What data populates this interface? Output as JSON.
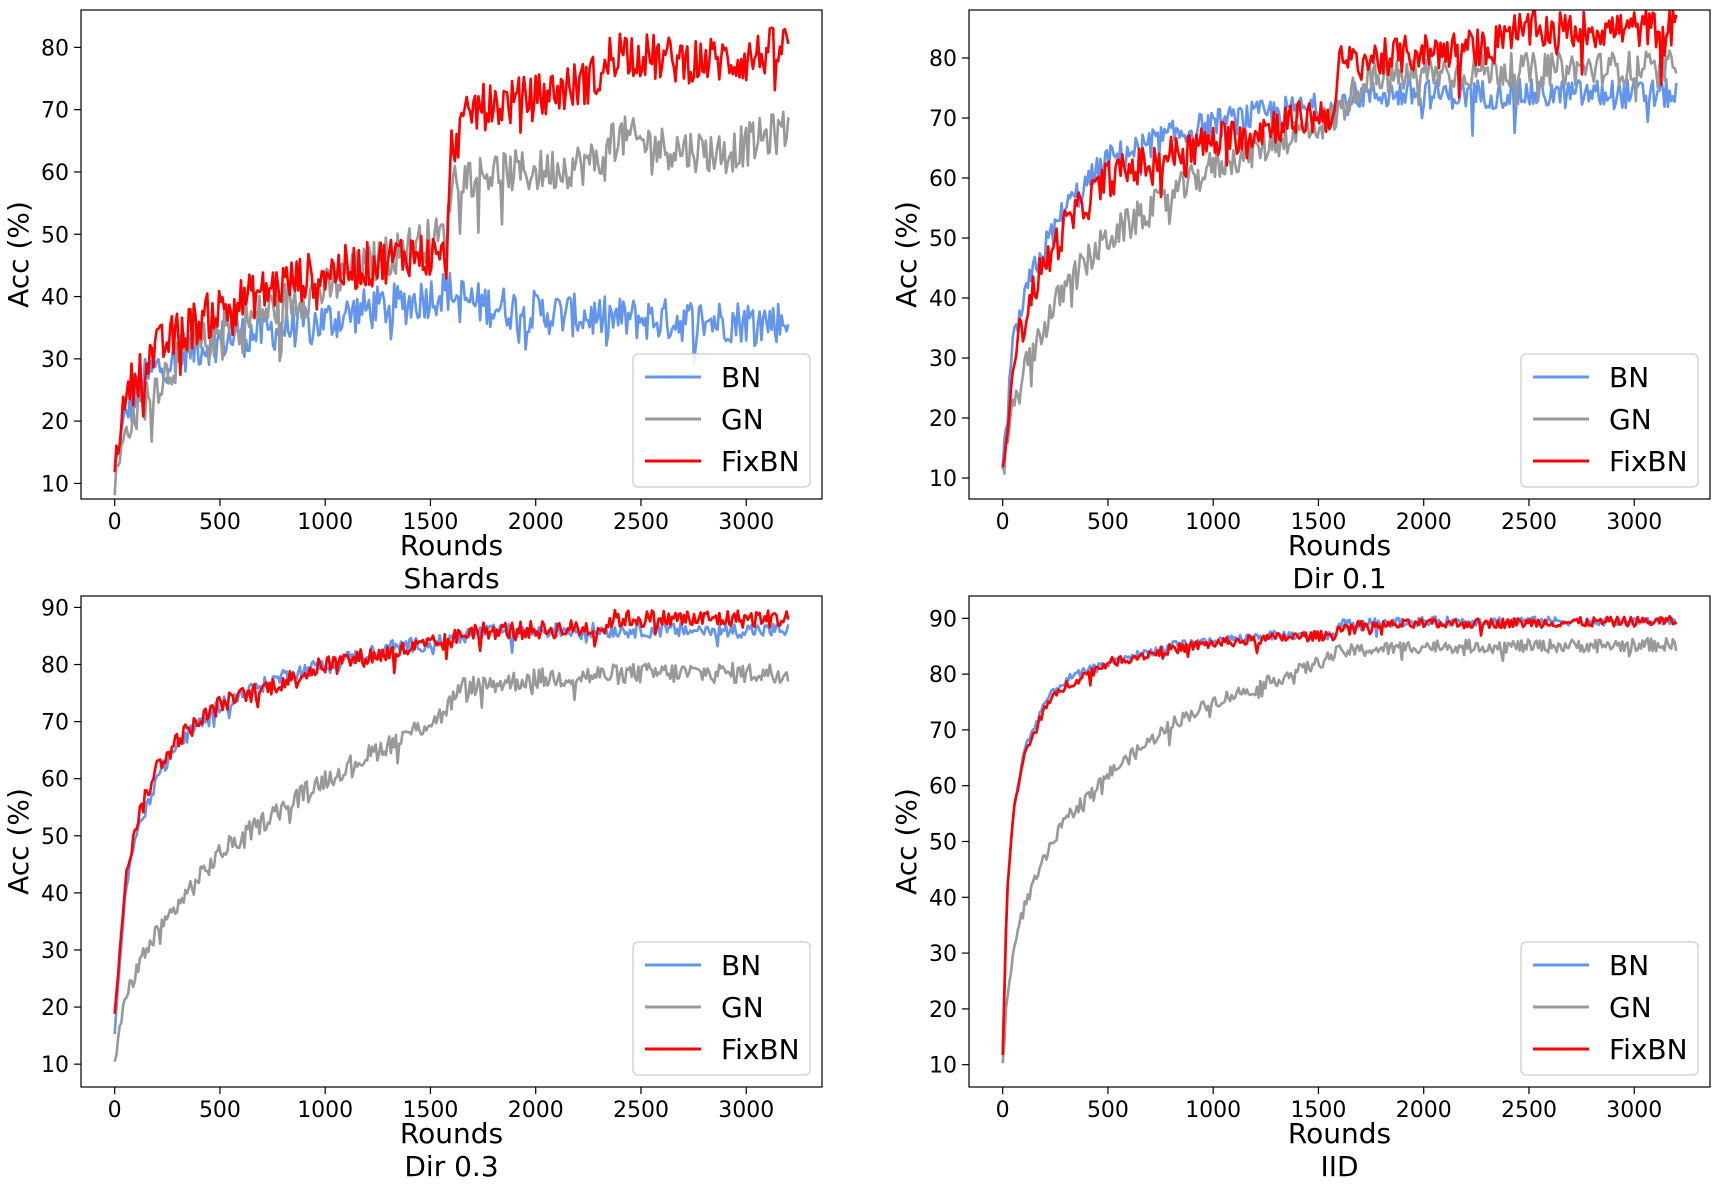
{
  "figure": {
    "ylabel": "Acc (%)",
    "xlabel": "Rounds"
  },
  "legend_entries": [
    {
      "name": "BN",
      "color": "#6495ED"
    },
    {
      "name": "GN",
      "color": "#999999"
    },
    {
      "name": "FixBN",
      "color": "#FF0000"
    }
  ],
  "chart_data": [
    {
      "type": "line",
      "title": "Shards",
      "xlabel": "Rounds",
      "ylabel": "Acc (%)",
      "xlim": [
        -160,
        3360
      ],
      "ylim": [
        7.5,
        86
      ],
      "xticks": [
        0,
        500,
        1000,
        1500,
        2000,
        2500,
        3000
      ],
      "yticks": [
        10,
        20,
        30,
        40,
        50,
        60,
        70,
        80
      ],
      "legend_position": "lower-right",
      "series": [
        {
          "name": "BN",
          "color": "#6495ED",
          "noise": 3.5,
          "points": [
            [
              0,
              12
            ],
            [
              50,
              21
            ],
            [
              150,
              27
            ],
            [
              300,
              31
            ],
            [
              500,
              33
            ],
            [
              800,
              35
            ],
            [
              1000,
              36
            ],
            [
              1200,
              38
            ],
            [
              1400,
              39
            ],
            [
              1580,
              41
            ],
            [
              1700,
              39
            ],
            [
              2000,
              37.5
            ],
            [
              2350,
              36.5
            ],
            [
              2700,
              36.2
            ],
            [
              3200,
              36
            ]
          ]
        },
        {
          "name": "GN",
          "color": "#999999",
          "noise": 3.5,
          "points": [
            [
              0,
              10
            ],
            [
              50,
              18
            ],
            [
              150,
              24
            ],
            [
              300,
              30
            ],
            [
              500,
              34
            ],
            [
              800,
              39
            ],
            [
              1000,
              41
            ],
            [
              1200,
              45
            ],
            [
              1400,
              48
            ],
            [
              1580,
              50
            ],
            [
              1600,
              59
            ],
            [
              1800,
              60
            ],
            [
              2000,
              60
            ],
            [
              2340,
              62
            ],
            [
              2360,
              66
            ],
            [
              2600,
              64
            ],
            [
              2900,
              63
            ],
            [
              3200,
              67
            ]
          ]
        },
        {
          "name": "FixBN",
          "color": "#FF0000",
          "noise": 3.8,
          "points": [
            [
              0,
              13
            ],
            [
              50,
              24
            ],
            [
              150,
              30
            ],
            [
              300,
              34
            ],
            [
              500,
              38
            ],
            [
              800,
              42
            ],
            [
              1000,
              44
            ],
            [
              1200,
              45
            ],
            [
              1400,
              47
            ],
            [
              1580,
              46
            ],
            [
              1600,
              64
            ],
            [
              1700,
              70
            ],
            [
              2000,
              72
            ],
            [
              2200,
              74
            ],
            [
              2340,
              76
            ],
            [
              2360,
              80
            ],
            [
              2600,
              78
            ],
            [
              3000,
              78
            ],
            [
              3200,
              80.5
            ]
          ]
        }
      ]
    },
    {
      "type": "line",
      "title": "Dir 0.1",
      "xlabel": "Rounds",
      "ylabel": "Acc (%)",
      "xlim": [
        -160,
        3360
      ],
      "ylim": [
        6.5,
        88
      ],
      "xticks": [
        0,
        500,
        1000,
        1500,
        2000,
        2500,
        3000
      ],
      "yticks": [
        10,
        20,
        30,
        40,
        50,
        60,
        70,
        80
      ],
      "legend_position": "lower-right",
      "series": [
        {
          "name": "BN",
          "color": "#6495ED",
          "noise": 2.5,
          "points": [
            [
              0,
              12
            ],
            [
              50,
              33
            ],
            [
              150,
              45
            ],
            [
              300,
              55
            ],
            [
              500,
              63
            ],
            [
              800,
              67
            ],
            [
              1000,
              69
            ],
            [
              1300,
              71
            ],
            [
              1580,
              72
            ],
            [
              1700,
              74
            ],
            [
              2000,
              74
            ],
            [
              2400,
              74
            ],
            [
              3200,
              74
            ]
          ]
        },
        {
          "name": "GN",
          "color": "#999999",
          "noise": 2.8,
          "points": [
            [
              0,
              12
            ],
            [
              50,
              22
            ],
            [
              150,
              32
            ],
            [
              300,
              42
            ],
            [
              500,
              50
            ],
            [
              800,
              57
            ],
            [
              1000,
              62
            ],
            [
              1300,
              66
            ],
            [
              1580,
              70
            ],
            [
              1700,
              76
            ],
            [
              2000,
              77.5
            ],
            [
              2400,
              78
            ],
            [
              3200,
              78.5
            ]
          ]
        },
        {
          "name": "FixBN",
          "color": "#FF0000",
          "noise": 3.2,
          "points": [
            [
              0,
              10
            ],
            [
              50,
              30
            ],
            [
              150,
              42
            ],
            [
              300,
              52
            ],
            [
              500,
              60
            ],
            [
              800,
              64
            ],
            [
              1000,
              66
            ],
            [
              1300,
              69
            ],
            [
              1580,
              71
            ],
            [
              1600,
              79
            ],
            [
              2000,
              81
            ],
            [
              2340,
              82
            ],
            [
              2360,
              84.5
            ],
            [
              3200,
              85
            ]
          ]
        }
      ]
    },
    {
      "type": "line",
      "title": "Dir 0.3",
      "xlabel": "Rounds",
      "ylabel": "Acc (%)",
      "xlim": [
        -160,
        3360
      ],
      "ylim": [
        6,
        92
      ],
      "xticks": [
        0,
        500,
        1000,
        1500,
        2000,
        2500,
        3000
      ],
      "yticks": [
        10,
        20,
        30,
        40,
        50,
        60,
        70,
        80,
        90
      ],
      "legend_position": "lower-right",
      "series": [
        {
          "name": "BN",
          "color": "#6495ED",
          "noise": 1.3,
          "points": [
            [
              0,
              16
            ],
            [
              50,
              40
            ],
            [
              100,
              50
            ],
            [
              200,
              60
            ],
            [
              300,
              66
            ],
            [
              500,
              73
            ],
            [
              800,
              78
            ],
            [
              1000,
              80
            ],
            [
              1300,
              83
            ],
            [
              1580,
              84
            ],
            [
              1700,
              85.5
            ],
            [
              2000,
              86
            ],
            [
              2500,
              86
            ],
            [
              3200,
              86
            ]
          ]
        },
        {
          "name": "GN",
          "color": "#999999",
          "noise": 1.8,
          "points": [
            [
              0,
              10
            ],
            [
              50,
              22
            ],
            [
              150,
              30
            ],
            [
              300,
              38
            ],
            [
              500,
              47
            ],
            [
              800,
              55
            ],
            [
              1000,
              60
            ],
            [
              1300,
              66
            ],
            [
              1550,
              71
            ],
            [
              1650,
              76
            ],
            [
              2000,
              77.5
            ],
            [
              2500,
              78.5
            ],
            [
              3200,
              78.5
            ]
          ]
        },
        {
          "name": "FixBN",
          "color": "#FF0000",
          "noise": 1.6,
          "points": [
            [
              0,
              19
            ],
            [
              50,
              42
            ],
            [
              100,
              52
            ],
            [
              200,
              62
            ],
            [
              300,
              67
            ],
            [
              500,
              73
            ],
            [
              800,
              77
            ],
            [
              1000,
              80
            ],
            [
              1300,
              82
            ],
            [
              1580,
              84
            ],
            [
              1700,
              86
            ],
            [
              2000,
              86
            ],
            [
              2340,
              86.5
            ],
            [
              2360,
              88
            ],
            [
              3200,
              88
            ]
          ]
        }
      ]
    },
    {
      "type": "line",
      "title": "IID",
      "xlabel": "Rounds",
      "ylabel": "Acc (%)",
      "xlim": [
        -160,
        3360
      ],
      "ylim": [
        6,
        94
      ],
      "xticks": [
        0,
        500,
        1000,
        1500,
        2000,
        2500,
        3000
      ],
      "yticks": [
        10,
        20,
        30,
        40,
        50,
        60,
        70,
        80,
        90
      ],
      "legend_position": "lower-right",
      "series": [
        {
          "name": "BN",
          "color": "#6495ED",
          "noise": 0.8,
          "points": [
            [
              0,
              12
            ],
            [
              20,
              40
            ],
            [
              50,
              55
            ],
            [
              100,
              66
            ],
            [
              200,
              75
            ],
            [
              300,
              79
            ],
            [
              500,
              82
            ],
            [
              800,
              85
            ],
            [
              1000,
              86
            ],
            [
              1300,
              87
            ],
            [
              1580,
              87
            ],
            [
              1600,
              89
            ],
            [
              2000,
              89.5
            ],
            [
              3200,
              89.5
            ]
          ]
        },
        {
          "name": "GN",
          "color": "#999999",
          "noise": 1.2,
          "points": [
            [
              0,
              10
            ],
            [
              20,
              22
            ],
            [
              50,
              30
            ],
            [
              100,
              38
            ],
            [
              200,
              47
            ],
            [
              300,
              54
            ],
            [
              500,
              62
            ],
            [
              800,
              71
            ],
            [
              1000,
              75
            ],
            [
              1300,
              79
            ],
            [
              1500,
              82
            ],
            [
              1600,
              84
            ],
            [
              2000,
              85
            ],
            [
              2500,
              85
            ],
            [
              3200,
              85.3
            ]
          ]
        },
        {
          "name": "FixBN",
          "color": "#FF0000",
          "noise": 0.9,
          "points": [
            [
              0,
              12
            ],
            [
              20,
              40
            ],
            [
              50,
              55
            ],
            [
              100,
              65
            ],
            [
              200,
              74
            ],
            [
              300,
              78
            ],
            [
              500,
              82
            ],
            [
              800,
              84.5
            ],
            [
              1000,
              85.5
            ],
            [
              1300,
              86.5
            ],
            [
              1580,
              87
            ],
            [
              1600,
              88.5
            ],
            [
              2000,
              89
            ],
            [
              3200,
              89.5
            ]
          ]
        }
      ]
    }
  ]
}
